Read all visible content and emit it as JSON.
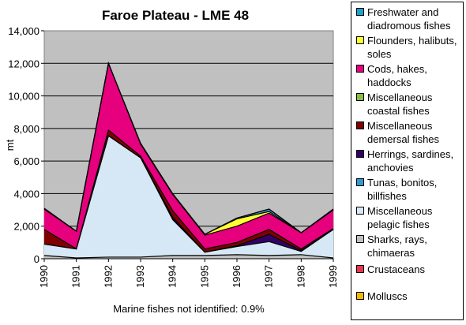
{
  "chart_data": {
    "type": "area",
    "stacked": true,
    "title": "Faroe Plateau - LME 48",
    "xlabel": "",
    "ylabel": "mt",
    "x": [
      "1990",
      "1991",
      "1992",
      "1993",
      "1994",
      "1995",
      "1996",
      "1997",
      "1998",
      "1999"
    ],
    "ylim": [
      0,
      14000
    ],
    "yticks": [
      "0",
      "2,000",
      "4,000",
      "6,000",
      "8,000",
      "10,000",
      "12,000",
      "14,000"
    ],
    "grid": "horizontal",
    "plot_background": "#c0c0c0",
    "legend_position": "right",
    "footnote": "Marine fishes not identified: 0.9%",
    "series": [
      {
        "name": "Sharks, rays, chimaeras",
        "color": "#c0c0c0",
        "values": [
          200,
          50,
          100,
          100,
          200,
          200,
          250,
          200,
          250,
          50
        ]
      },
      {
        "name": "Miscellaneous pelagic fishes",
        "color": "#d6e8f5",
        "values": [
          700,
          550,
          7450,
          6100,
          2200,
          200,
          500,
          850,
          200,
          1750
        ]
      },
      {
        "name": "Herrings, sardines, anchovies",
        "color": "#330066",
        "values": [
          0,
          0,
          0,
          0,
          150,
          0,
          50,
          450,
          50,
          0
        ]
      },
      {
        "name": "Miscellaneous demersal fishes",
        "color": "#800000",
        "values": [
          900,
          10,
          350,
          100,
          400,
          200,
          200,
          300,
          100,
          50
        ]
      },
      {
        "name": "Cods, hakes, haddocks",
        "color": "#e6007e",
        "values": [
          1250,
          1080,
          4100,
          750,
          1000,
          850,
          1000,
          1000,
          1000,
          1150
        ]
      },
      {
        "name": "Flounders, halibuts, soles",
        "color": "#ffff33",
        "values": [
          0,
          0,
          0,
          0,
          0,
          50,
          450,
          100,
          0,
          0
        ]
      },
      {
        "name": "Tunas, bonitos, billfishes",
        "color": "#3399cc",
        "values": [
          0,
          0,
          0,
          0,
          0,
          0,
          50,
          150,
          0,
          0
        ]
      },
      {
        "name": "Miscellaneous coastal fishes",
        "color": "#88bb44",
        "values": [
          50,
          0,
          0,
          50,
          50,
          0,
          0,
          0,
          0,
          50
        ]
      },
      {
        "name": "Freshwater and diadromous fishes",
        "color": "#1aa3cc",
        "values": [
          0,
          0,
          0,
          0,
          0,
          0,
          0,
          0,
          0,
          0
        ]
      },
      {
        "name": "Crustaceans",
        "color": "#e8344f",
        "values": [
          0,
          0,
          0,
          0,
          0,
          0,
          0,
          0,
          0,
          0
        ]
      },
      {
        "name": "Molluscs",
        "color": "#f5b800",
        "values": [
          0,
          0,
          0,
          0,
          0,
          0,
          0,
          0,
          0,
          0
        ]
      }
    ],
    "legend": [
      {
        "label": "Freshwater and diadromous fishes",
        "color": "#1aa3cc"
      },
      {
        "label": "Flounders, halibuts, soles",
        "color": "#ffff33"
      },
      {
        "label": "Cods, hakes, haddocks",
        "color": "#e6007e"
      },
      {
        "label": "Miscellaneous coastal fishes",
        "color": "#88bb44"
      },
      {
        "label": "Miscellaneous demersal fishes",
        "color": "#800000"
      },
      {
        "label": "Herrings, sardines, anchovies",
        "color": "#330066"
      },
      {
        "label": "Tunas, bonitos, billfishes",
        "color": "#3399cc"
      },
      {
        "label": "Miscellaneous pelagic fishes",
        "color": "#d6e8f5"
      },
      {
        "label": "Sharks, rays, chimaeras",
        "color": "#c0c0c0"
      },
      {
        "label": "Crustaceans",
        "color": "#e8344f"
      },
      {
        "label": "Molluscs",
        "color": "#f5b800"
      }
    ]
  }
}
